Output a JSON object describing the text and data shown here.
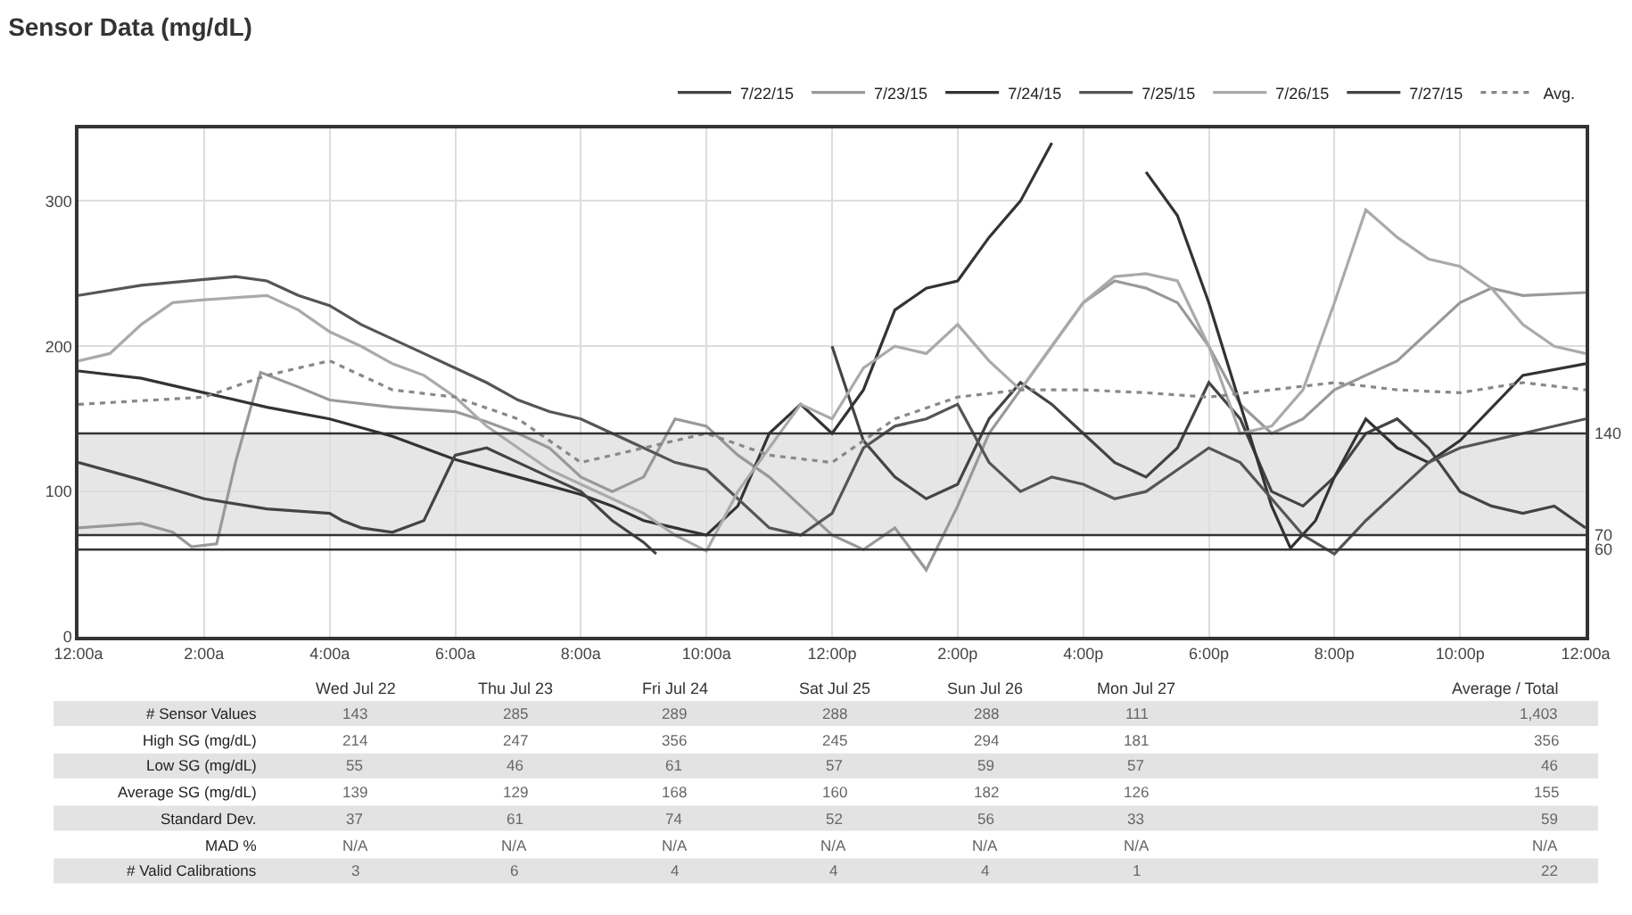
{
  "chart_data": {
    "type": "line",
    "title": "Sensor Data (mg/dL)",
    "xlim": [
      0,
      24
    ],
    "xticks": [
      {
        "value": 0,
        "label": "12:00a"
      },
      {
        "value": 2,
        "label": "2:00a"
      },
      {
        "value": 4,
        "label": "4:00a"
      },
      {
        "value": 6,
        "label": "6:00a"
      },
      {
        "value": 8,
        "label": "8:00a"
      },
      {
        "value": 10,
        "label": "10:00a"
      },
      {
        "value": 12,
        "label": "12:00p"
      },
      {
        "value": 14,
        "label": "2:00p"
      },
      {
        "value": 16,
        "label": "4:00p"
      },
      {
        "value": 18,
        "label": "6:00p"
      },
      {
        "value": 20,
        "label": "8:00p"
      },
      {
        "value": 22,
        "label": "10:00p"
      },
      {
        "value": 24,
        "label": "12:00a"
      }
    ],
    "ylim": [
      0,
      350
    ],
    "yticks": [
      0,
      100,
      200,
      300
    ],
    "grid": true,
    "legend": "top right",
    "marker": "none",
    "line_style": "solid",
    "series": [
      {
        "name": "7/22/15",
        "color": "#444444",
        "x": [
          12,
          12.5,
          13,
          13.5,
          14,
          14.5,
          15,
          15.5,
          16,
          16.5,
          17,
          17.5,
          18,
          18.5,
          19,
          19.5,
          20,
          20.5,
          21,
          21.5,
          22,
          22.5,
          23,
          23.5,
          24
        ],
        "values": [
          200,
          135,
          110,
          95,
          105,
          150,
          175,
          160,
          140,
          120,
          110,
          130,
          175,
          150,
          100,
          90,
          110,
          140,
          150,
          130,
          100,
          90,
          85,
          90,
          75
        ]
      },
      {
        "name": "7/23/15",
        "color": "#999999",
        "x": [
          0,
          1,
          1.5,
          1.8,
          2.2,
          2.5,
          2.9,
          3.5,
          4,
          5,
          6,
          6.5,
          7,
          7.5,
          8,
          8.5,
          9,
          9.5,
          10,
          10.5,
          11,
          11.5,
          12,
          12.5,
          13,
          13.5,
          14,
          14.5,
          15,
          15.5,
          16,
          16.5,
          17,
          17.5,
          18,
          18.5,
          19,
          19.5,
          20,
          21,
          22,
          22.5,
          23,
          24
        ],
        "values": [
          75,
          78,
          72,
          62,
          64,
          120,
          182,
          172,
          163,
          158,
          155,
          148,
          140,
          130,
          110,
          100,
          110,
          150,
          145,
          125,
          110,
          90,
          70,
          60,
          75,
          46,
          90,
          140,
          170,
          200,
          230,
          245,
          240,
          230,
          200,
          160,
          140,
          150,
          170,
          190,
          230,
          240,
          235,
          237
        ]
      },
      {
        "name": "7/24/15",
        "color": "#333333",
        "x": [
          0,
          1,
          2,
          3,
          4,
          5,
          6,
          7,
          8,
          8.5,
          9,
          9.5,
          10,
          10.5,
          11,
          11.5,
          12,
          12.5,
          13,
          13.5,
          14,
          14.5,
          15,
          15.5,
          16,
          16.5,
          17,
          17.5,
          18,
          18.5,
          19,
          19.3,
          19.7,
          20,
          20.5,
          21,
          21.5,
          22,
          23,
          24
        ],
        "values": [
          183,
          178,
          168,
          158,
          150,
          138,
          122,
          110,
          98,
          90,
          80,
          75,
          70,
          90,
          140,
          160,
          140,
          170,
          225,
          240,
          245,
          275,
          300,
          340,
          null,
          null,
          320,
          290,
          230,
          160,
          90,
          61,
          80,
          110,
          150,
          130,
          120,
          135,
          180,
          188
        ]
      },
      {
        "name": "7/25/15",
        "color": "#555555",
        "x": [
          0,
          1,
          2,
          2.5,
          3,
          3.5,
          4,
          4.5,
          5,
          5.5,
          6,
          6.5,
          7,
          7.5,
          8,
          8.5,
          9,
          9.5,
          10,
          10.5,
          11,
          11.5,
          12,
          12.5,
          13,
          13.5,
          14,
          14.5,
          15,
          15.5,
          16,
          16.5,
          17,
          17.5,
          18,
          18.5,
          19,
          19.5,
          20,
          20.5,
          21,
          21.5,
          22,
          23,
          24
        ],
        "values": [
          235,
          242,
          246,
          248,
          245,
          235,
          228,
          215,
          205,
          195,
          185,
          175,
          163,
          155,
          150,
          140,
          130,
          120,
          115,
          95,
          75,
          70,
          85,
          130,
          145,
          150,
          160,
          120,
          100,
          110,
          105,
          95,
          100,
          115,
          130,
          120,
          95,
          70,
          57,
          80,
          100,
          120,
          130,
          140,
          150
        ]
      },
      {
        "name": "7/26/15",
        "color": "#aaaaaa",
        "x": [
          0,
          0.5,
          1,
          1.5,
          2,
          3,
          3.5,
          4,
          4.5,
          5,
          5.5,
          6,
          6.5,
          7,
          7.5,
          8,
          8.5,
          9,
          9.5,
          10,
          10.5,
          11,
          11.5,
          12,
          12.5,
          13,
          13.5,
          14,
          14.5,
          15,
          15.5,
          16,
          16.5,
          17,
          17.5,
          18,
          18.5,
          19,
          19.5,
          20,
          20.5,
          21,
          21.5,
          22,
          22.5,
          23,
          23.5,
          24
        ],
        "values": [
          190,
          195,
          215,
          230,
          232,
          235,
          225,
          210,
          200,
          188,
          180,
          165,
          145,
          130,
          115,
          105,
          95,
          85,
          70,
          59,
          100,
          130,
          160,
          150,
          185,
          200,
          195,
          215,
          190,
          170,
          200,
          230,
          248,
          250,
          245,
          200,
          140,
          145,
          170,
          230,
          294,
          275,
          260,
          255,
          240,
          215,
          200,
          195
        ]
      },
      {
        "name": "7/27/15",
        "color": "#444444",
        "x": [
          0,
          1,
          2,
          3,
          4,
          4.2,
          4.5,
          5,
          5.5,
          6,
          6.5,
          7,
          7.5,
          8,
          8.5,
          9,
          9.2
        ],
        "values": [
          120,
          108,
          95,
          88,
          85,
          80,
          75,
          72,
          80,
          125,
          130,
          120,
          110,
          100,
          80,
          65,
          57
        ]
      },
      {
        "name": "Avg.",
        "color": "#888888",
        "line_style": "dotted",
        "x": [
          0,
          2,
          3,
          4,
          5,
          6,
          7,
          8,
          9,
          10,
          11,
          12,
          13,
          14,
          15,
          16,
          17,
          18,
          19,
          20,
          21,
          22,
          23,
          24
        ],
        "values": [
          160,
          165,
          180,
          190,
          170,
          165,
          150,
          120,
          130,
          140,
          125,
          120,
          150,
          165,
          170,
          170,
          168,
          165,
          170,
          175,
          170,
          168,
          175,
          170
        ]
      }
    ],
    "ref_lines": [
      {
        "axis": "y",
        "value": 140,
        "label": "140",
        "color": "#333333"
      },
      {
        "axis": "y",
        "value": 70,
        "label": "70",
        "color": "#333333"
      },
      {
        "axis": "y",
        "value": 60,
        "label": "60",
        "color": "#333333"
      }
    ],
    "bands": [
      {
        "axis": "y",
        "from": 70,
        "to": 140,
        "color": "#e6e6e6"
      }
    ],
    "annotations": [
      "Wed Jul 22",
      "Thu Jul 23",
      "Fri Jul 24",
      "Sat Jul 25",
      "Sun Jul 26",
      "Mon Jul 27",
      "Average / Total",
      "# Sensor Values",
      "143",
      "285",
      "289",
      "288",
      "288",
      "111",
      "1,403",
      "High SG (mg/dL)",
      "214",
      "247",
      "356",
      "245",
      "294",
      "181",
      "356",
      "Low SG (mg/dL)",
      "55",
      "46",
      "61",
      "57",
      "59",
      "57",
      "46",
      "Average SG (mg/dL)",
      "139",
      "129",
      "168",
      "160",
      "182",
      "126",
      "155",
      "Standard Dev.",
      "37",
      "61",
      "74",
      "52",
      "56",
      "33",
      "59",
      "MAD %",
      "N/A",
      "N/A",
      "N/A",
      "N/A",
      "N/A",
      "N/A",
      "N/A",
      "# Valid Calibrations",
      "3",
      "6",
      "4",
      "4",
      "4",
      "1",
      "22"
    ]
  }
}
